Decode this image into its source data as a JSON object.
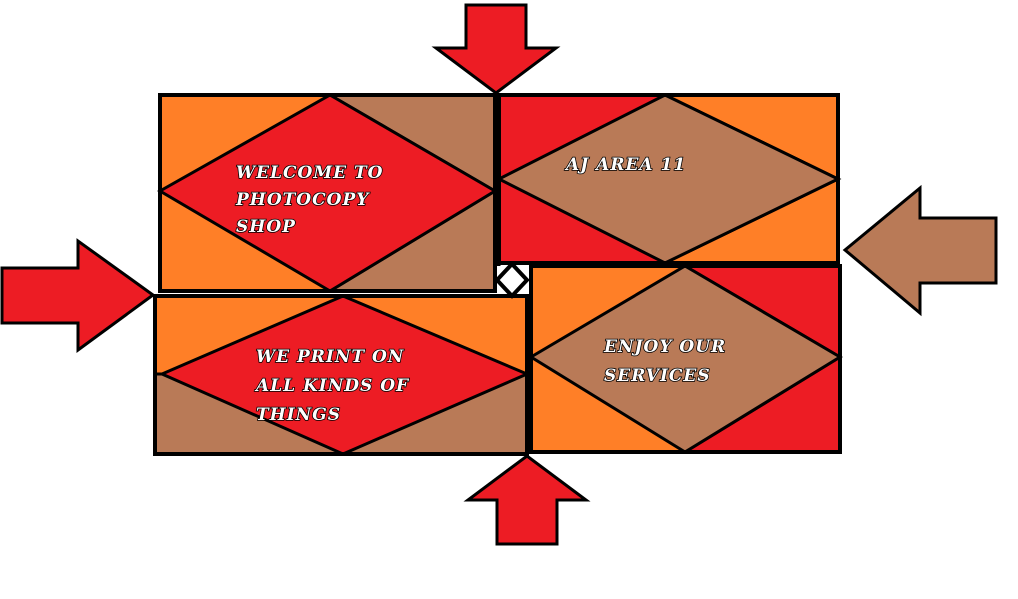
{
  "colors": {
    "red": "#ED1C24",
    "orange": "#FF7F27",
    "brown": "#B97A57",
    "outline": "#000000"
  },
  "panels": {
    "top_left": {
      "lines": [
        "WELCOME TO",
        "PHOTOCOPY",
        "SHOP"
      ]
    },
    "top_right": {
      "lines": [
        "AJ AREA 11"
      ]
    },
    "bottom_left": {
      "lines": [
        "WE PRINT ON",
        "ALL KINDS OF",
        "THINGS"
      ]
    },
    "bottom_right": {
      "lines": [
        "ENJOY OUR",
        "SERVICES"
      ]
    }
  },
  "arrows": {
    "top": "down",
    "left": "right",
    "right": "left",
    "bottom": "up"
  }
}
